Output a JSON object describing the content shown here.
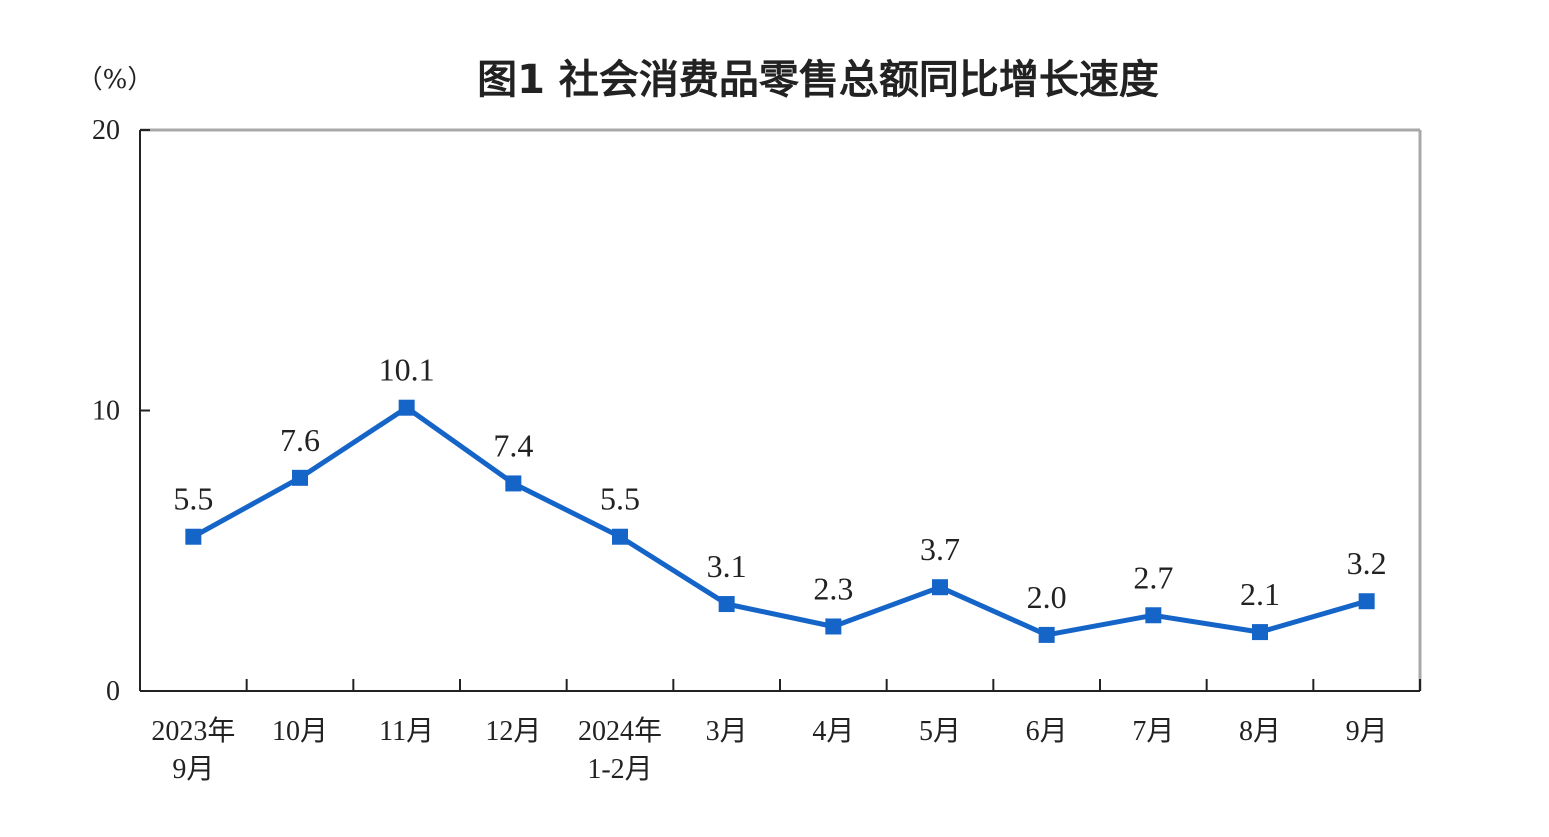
{
  "chart_data": {
    "type": "line",
    "title": "图1  社会消费品零售总额同比增长速度",
    "unit_label": "（%）",
    "categories": [
      [
        "2023年",
        "9月"
      ],
      [
        "10月"
      ],
      [
        "11月"
      ],
      [
        "12月"
      ],
      [
        "2024年",
        "1-2月"
      ],
      [
        "3月"
      ],
      [
        "4月"
      ],
      [
        "5月"
      ],
      [
        "6月"
      ],
      [
        "7月"
      ],
      [
        "8月"
      ],
      [
        "9月"
      ]
    ],
    "values": [
      5.5,
      7.6,
      10.1,
      7.4,
      5.5,
      3.1,
      2.3,
      3.7,
      2.0,
      2.7,
      2.1,
      3.2
    ],
    "data_labels": [
      "5.5",
      "7.6",
      "10.1",
      "7.4",
      "5.5",
      "3.1",
      "2.3",
      "3.7",
      "2.0",
      "2.7",
      "2.1",
      "3.2"
    ],
    "yticks": [
      {
        "value": 0,
        "label": "0"
      },
      {
        "value": 10,
        "label": "10"
      },
      {
        "value": 20,
        "label": "20"
      }
    ],
    "ylim": [
      0,
      20
    ],
    "line_color": "#1565c8",
    "grid": false,
    "legend": "none"
  }
}
